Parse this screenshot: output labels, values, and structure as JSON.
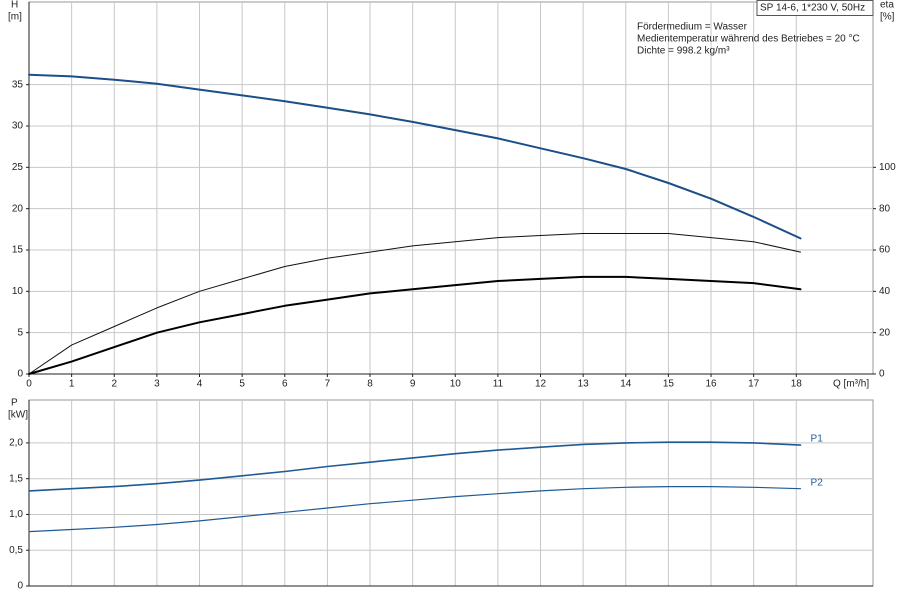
{
  "chart_data": [
    {
      "type": "line",
      "ylabel": "H",
      "yunit": "[m]",
      "y2label": "eta",
      "y2unit": "[%]",
      "xlabel": "Q [m³/h]",
      "info_box": "SP 14-6, 1*230 V, 50Hz",
      "annotations": [
        "Fördermedium = Wasser",
        "Medientemperatur während des Betriebes = 20 °C",
        "Dichte = 998.2 kg/m³"
      ],
      "xlim": [
        0,
        19.8
      ],
      "xticks": [
        0,
        1,
        2,
        3,
        4,
        5,
        6,
        7,
        8,
        9,
        10,
        11,
        12,
        13,
        14,
        15,
        16,
        17,
        18
      ],
      "ylim": [
        0,
        45
      ],
      "yticks": [
        0,
        5,
        10,
        15,
        20,
        25,
        30,
        35
      ],
      "y2lim": [
        0,
        180
      ],
      "y2ticks": [
        0,
        20,
        40,
        60,
        80,
        100
      ],
      "grid": true,
      "x": [
        0,
        1,
        2,
        3,
        4,
        5,
        6,
        7,
        8,
        9,
        10,
        11,
        12,
        13,
        14,
        15,
        16,
        17,
        18.1
      ],
      "series": [
        {
          "color": "#1b4f87",
          "values": [
            36.2,
            36.0,
            35.6,
            35.1,
            34.4,
            33.7,
            33.0,
            32.2,
            31.4,
            30.5,
            29.5,
            28.5,
            27.3,
            26.1,
            24.8,
            23.1,
            21.2,
            19.0,
            16.4
          ]
        },
        {
          "color": "#111111",
          "axis": "y2",
          "values": [
            0,
            14,
            23,
            32,
            40,
            46,
            52,
            56,
            59,
            62,
            64,
            66,
            67,
            68,
            68,
            68,
            66,
            64,
            59
          ]
        },
        {
          "color": "#000000",
          "axis": "y2",
          "values": [
            0,
            6,
            13,
            20,
            25,
            29,
            33,
            36,
            39,
            41,
            43,
            45,
            46,
            47,
            47,
            46,
            45,
            44,
            41
          ]
        }
      ]
    },
    {
      "type": "line",
      "ylabel": "P",
      "yunit": "[kW]",
      "xlim": [
        0,
        19.8
      ],
      "ylim": [
        0,
        2.6
      ],
      "yticks": [
        0,
        {
          "value": 0.5,
          "label": "0,5"
        },
        {
          "value": 1.0,
          "label": "1,0"
        },
        {
          "value": 1.5,
          "label": "1,5"
        },
        {
          "value": 2.0,
          "label": "2,0"
        }
      ],
      "grid": true,
      "x": [
        0,
        1,
        2,
        3,
        4,
        5,
        6,
        7,
        8,
        9,
        10,
        11,
        12,
        13,
        14,
        15,
        16,
        17,
        18.1
      ],
      "series": [
        {
          "name": "P1",
          "color": "#1f5a96",
          "values": [
            1.33,
            1.36,
            1.39,
            1.43,
            1.48,
            1.54,
            1.6,
            1.67,
            1.73,
            1.79,
            1.85,
            1.9,
            1.94,
            1.98,
            2.0,
            2.01,
            2.01,
            2.0,
            1.97
          ]
        },
        {
          "name": "P2",
          "color": "#1f5a96",
          "values": [
            0.76,
            0.79,
            0.82,
            0.86,
            0.91,
            0.97,
            1.03,
            1.09,
            1.15,
            1.2,
            1.25,
            1.29,
            1.33,
            1.36,
            1.38,
            1.39,
            1.39,
            1.38,
            1.36
          ]
        }
      ]
    }
  ]
}
